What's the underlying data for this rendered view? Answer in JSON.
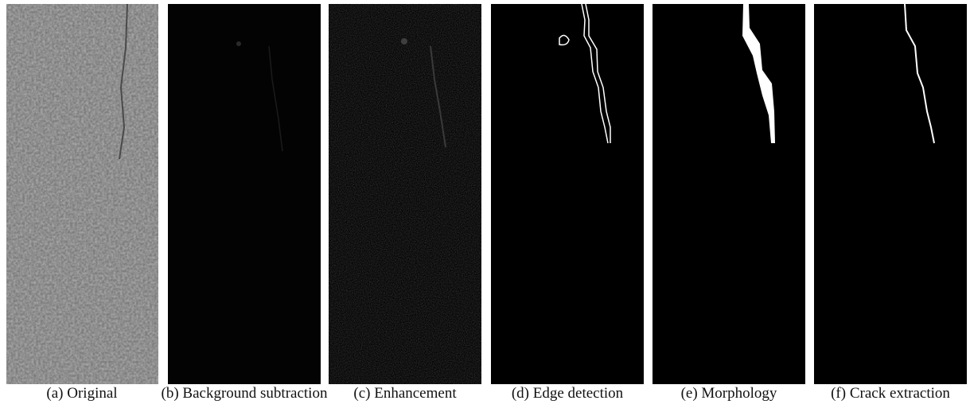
{
  "panels": [
    {
      "caption": "(a) Original"
    },
    {
      "caption": "(b) Background subtraction"
    },
    {
      "caption": "(c) Enhancement"
    },
    {
      "caption": "(d) Edge detection"
    },
    {
      "caption": "(e) Morphology"
    },
    {
      "caption": "(f) Crack extraction"
    }
  ]
}
